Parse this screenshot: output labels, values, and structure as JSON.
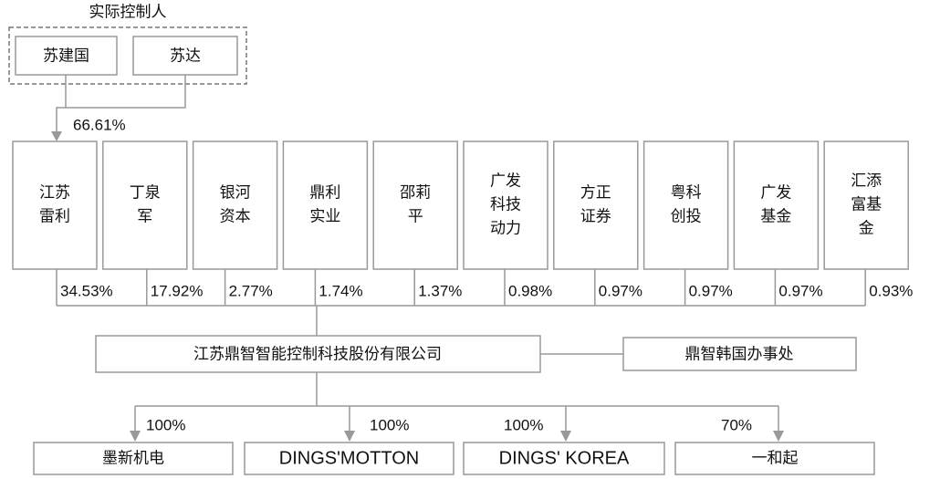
{
  "controllers_label": "实际控制人",
  "controllers": [
    "苏建国",
    "苏达"
  ],
  "controller_share": "66.61%",
  "shareholders": [
    {
      "name": [
        "江苏",
        "雷利"
      ],
      "share": "34.53%"
    },
    {
      "name": [
        "丁泉",
        "军"
      ],
      "share": "17.92%"
    },
    {
      "name": [
        "银河",
        "资本"
      ],
      "share": "2.77%"
    },
    {
      "name": [
        "鼎利",
        "实业"
      ],
      "share": "1.74%"
    },
    {
      "name": [
        "邵莉",
        "平"
      ],
      "share": "1.37%"
    },
    {
      "name": [
        "广发",
        "科技",
        "动力"
      ],
      "share": "0.98%"
    },
    {
      "name": [
        "方正",
        "证券"
      ],
      "share": "0.97%"
    },
    {
      "name": [
        "粤科",
        "创投"
      ],
      "share": "0.97%"
    },
    {
      "name": [
        "广发",
        "基金"
      ],
      "share": "0.97%"
    },
    {
      "name": [
        "汇添",
        "富基",
        "金"
      ],
      "share": "0.93%"
    }
  ],
  "company": "江苏鼎智智能控制科技股份有限公司",
  "office": "鼎智韩国办事处",
  "subsidiaries": [
    {
      "name": "墨新机电",
      "share": "100%"
    },
    {
      "name": "DINGS'MOTTON",
      "share": "100%"
    },
    {
      "name": "DINGS' KOREA",
      "share": "100%"
    },
    {
      "name": "一和起",
      "share": "70%"
    }
  ]
}
